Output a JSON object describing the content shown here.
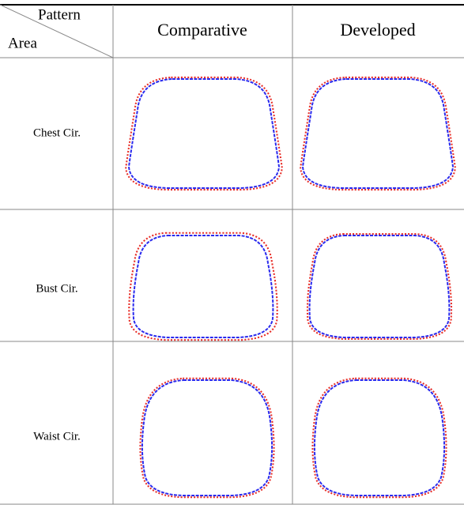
{
  "table": {
    "header": {
      "pattern": "Pattern",
      "area": "Area",
      "columns": [
        "Comparative",
        "Developed"
      ]
    },
    "rows": [
      {
        "label": "Chest Cir."
      },
      {
        "label": "Bust Cir."
      },
      {
        "label": "Waist Cir."
      }
    ]
  }
}
